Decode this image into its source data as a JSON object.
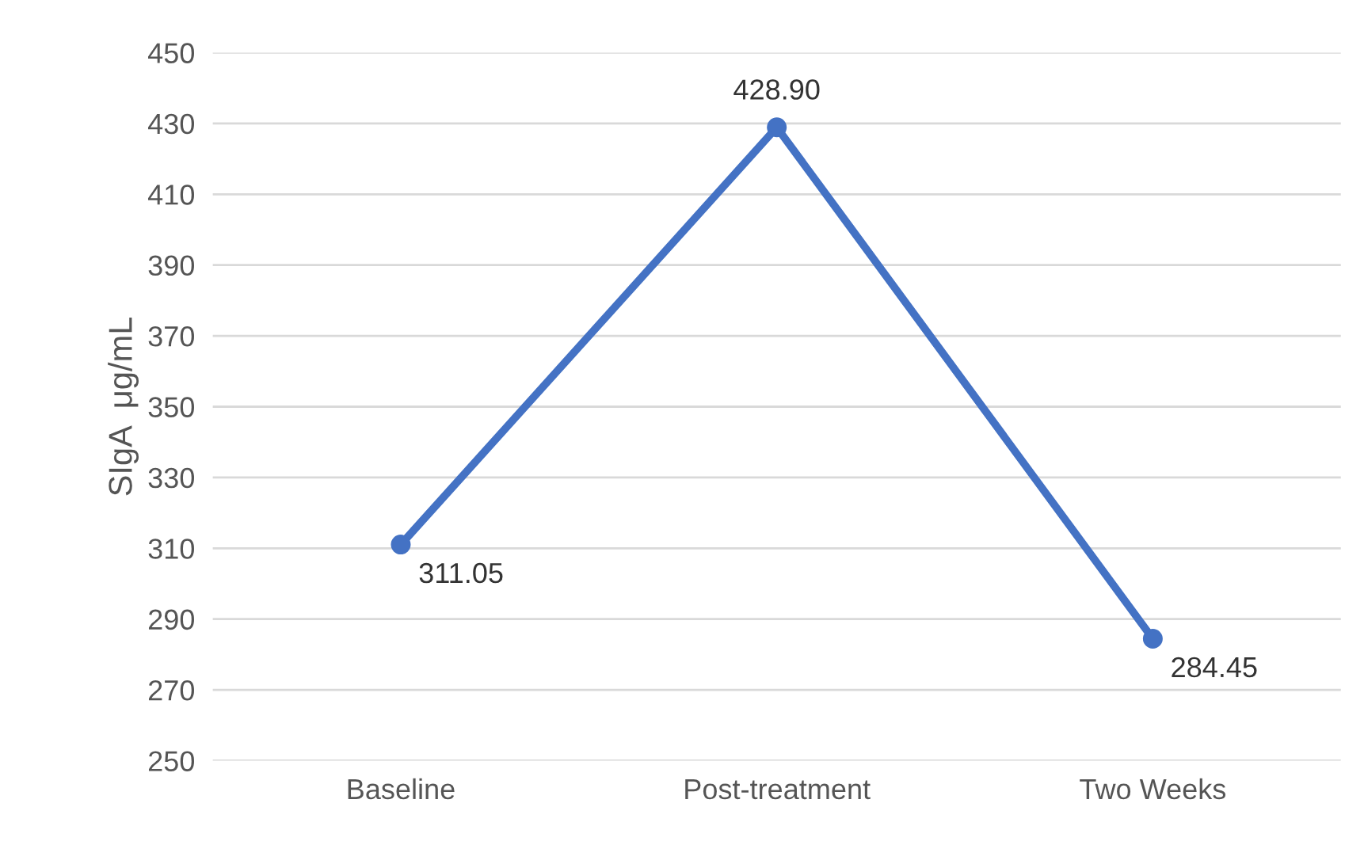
{
  "chart_data": {
    "type": "line",
    "ylabel": "SIgA  μg/mL",
    "categories": [
      "Baseline",
      "Post-treatment",
      "Two Weeks"
    ],
    "series": [
      {
        "color": "#4472c4",
        "values": [
          311.05,
          428.9,
          284.45
        ]
      }
    ],
    "value_labels": [
      "311.05",
      "428.90",
      "284.45"
    ],
    "ylim": [
      250,
      450
    ],
    "yticks": [
      250,
      270,
      290,
      310,
      330,
      350,
      370,
      390,
      410,
      430,
      450
    ],
    "grid": "y",
    "marker": "circle",
    "line_style": "solid"
  }
}
